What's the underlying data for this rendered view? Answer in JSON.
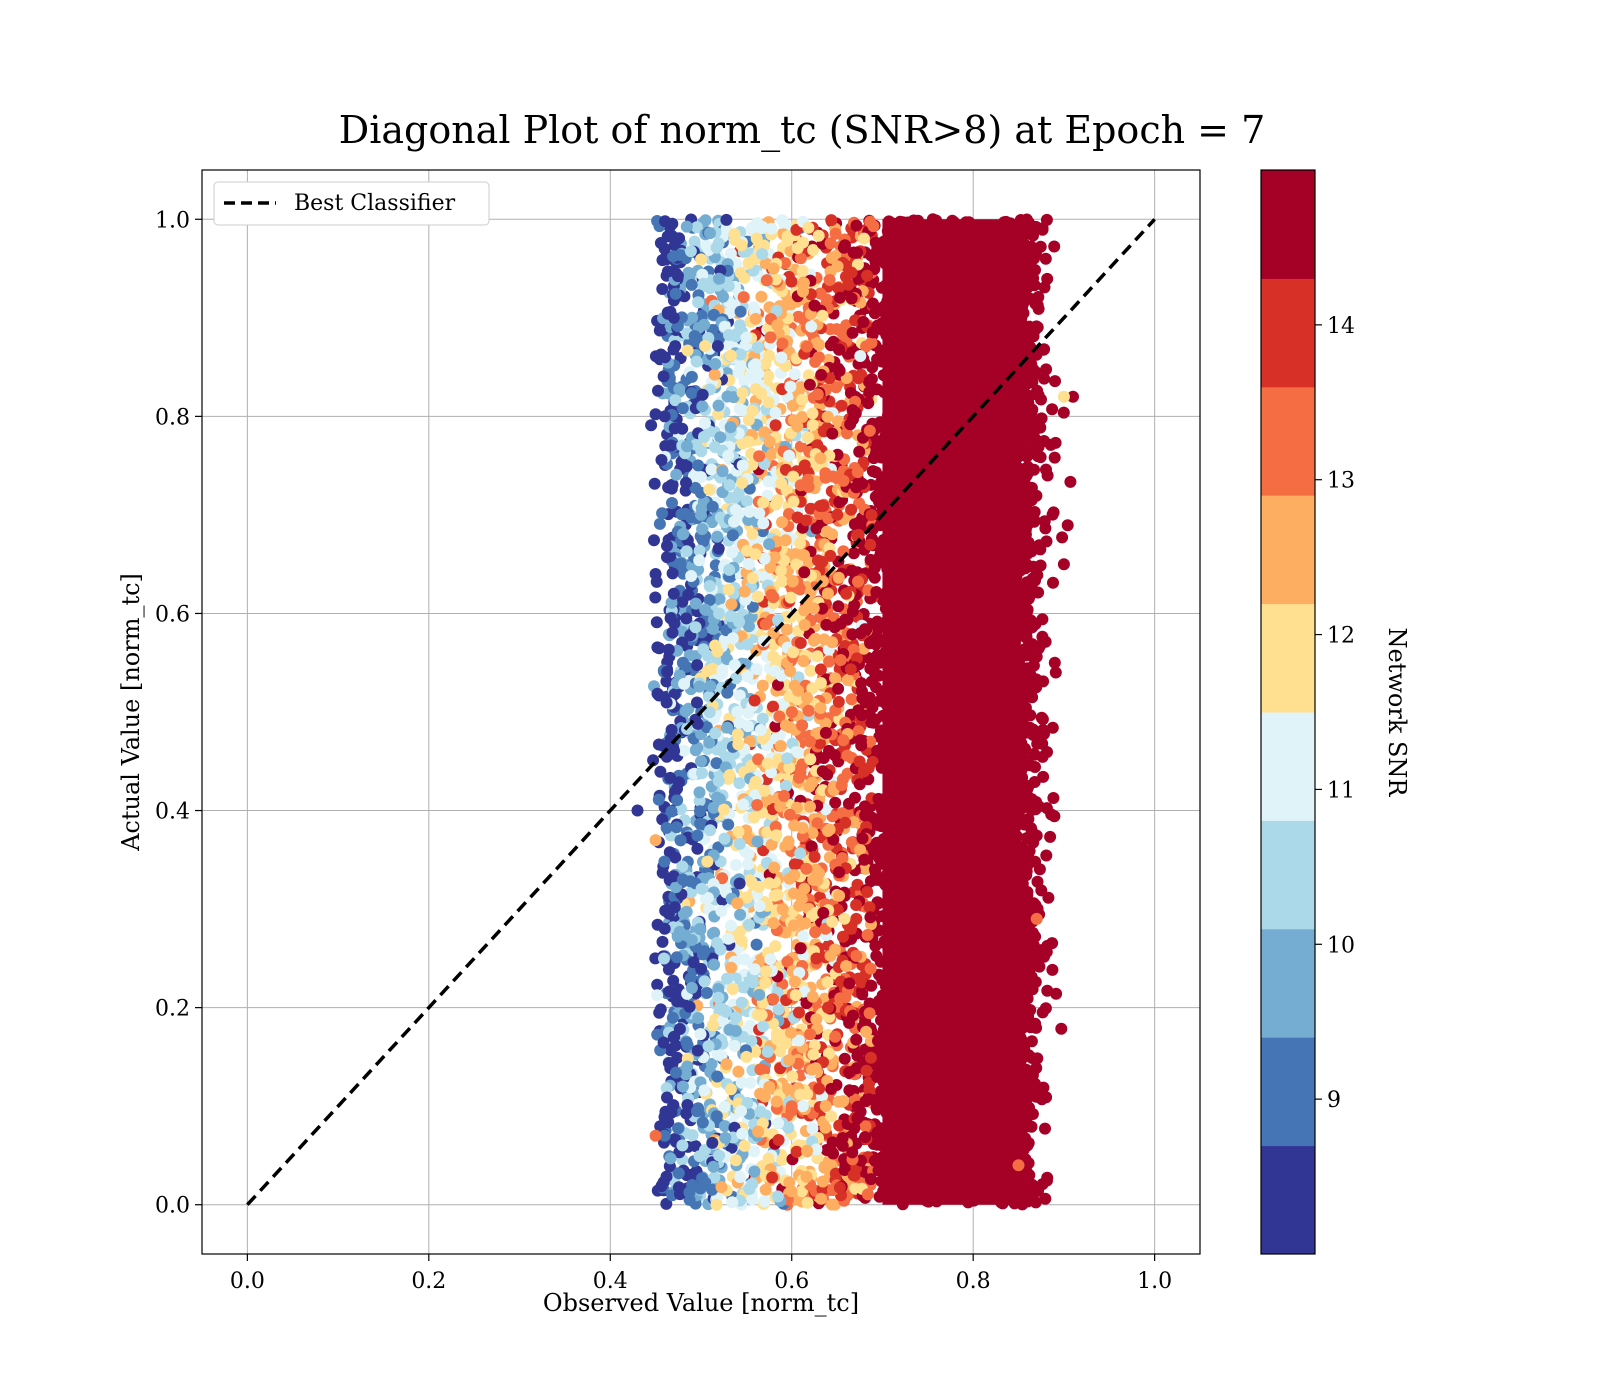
{
  "chart_data": {
    "type": "scatter",
    "title": "Diagonal Plot of norm_tc (SNR>8) at Epoch = 7",
    "xlabel": "Observed Value [norm_tc]",
    "ylabel": "Actual Value [norm_tc]",
    "xlim": [
      -0.05,
      1.05
    ],
    "ylim": [
      -0.05,
      1.05
    ],
    "xticks": [
      0.0,
      0.2,
      0.4,
      0.6,
      0.8,
      1.0
    ],
    "yticks": [
      0.0,
      0.2,
      0.4,
      0.6,
      0.8,
      1.0
    ],
    "xtick_labels": [
      "0.0",
      "0.2",
      "0.4",
      "0.6",
      "0.8",
      "1.0"
    ],
    "ytick_labels": [
      "0.0",
      "0.2",
      "0.4",
      "0.6",
      "0.8",
      "1.0"
    ],
    "grid": true,
    "legend_position": "upper-left",
    "series": [
      {
        "name": "Best Classifier",
        "kind": "line",
        "style": "dashed",
        "color": "#000000",
        "x": [
          0.0,
          1.0
        ],
        "y": [
          0.0,
          1.0
        ]
      }
    ],
    "scatter_summary": {
      "x_range": [
        0.45,
        0.9
      ],
      "y_range": [
        0.0,
        1.0
      ],
      "color_by": "Network SNR",
      "trend": "higher observed value corresponds to higher network SNR",
      "points": [
        [
          0.46,
          0.97,
          8.3
        ],
        [
          0.47,
          0.9,
          8.7
        ],
        [
          0.46,
          0.8,
          8.4
        ],
        [
          0.47,
          0.62,
          8.6
        ],
        [
          0.45,
          0.64,
          8.2
        ],
        [
          0.43,
          0.4,
          8.3
        ],
        [
          0.46,
          0.28,
          8.5
        ],
        [
          0.47,
          0.17,
          8.4
        ],
        [
          0.46,
          0.07,
          8.8
        ],
        [
          0.48,
          0.55,
          9.2
        ],
        [
          0.48,
          0.33,
          9.1
        ],
        [
          0.49,
          0.84,
          9.3
        ],
        [
          0.48,
          0.12,
          9.4
        ],
        [
          0.5,
          0.7,
          9.8
        ],
        [
          0.5,
          0.45,
          9.6
        ],
        [
          0.49,
          0.22,
          9.9
        ],
        [
          0.51,
          0.93,
          10.2
        ],
        [
          0.52,
          0.6,
          10.4
        ],
        [
          0.51,
          0.38,
          10.3
        ],
        [
          0.52,
          0.05,
          10.6
        ],
        [
          0.53,
          0.76,
          10.8
        ],
        [
          0.54,
          0.5,
          11.1
        ],
        [
          0.53,
          0.27,
          11.0
        ],
        [
          0.55,
          0.88,
          11.4
        ],
        [
          0.56,
          0.66,
          11.7
        ],
        [
          0.55,
          0.15,
          11.8
        ],
        [
          0.57,
          0.42,
          12.1
        ],
        [
          0.58,
          0.95,
          12.3
        ],
        [
          0.58,
          0.58,
          12.4
        ],
        [
          0.59,
          0.3,
          12.6
        ],
        [
          0.6,
          0.1,
          12.9
        ],
        [
          0.61,
          0.73,
          13.1
        ],
        [
          0.62,
          0.47,
          13.3
        ],
        [
          0.63,
          0.86,
          13.6
        ],
        [
          0.64,
          0.2,
          13.8
        ],
        [
          0.66,
          0.62,
          14.1
        ],
        [
          0.68,
          0.35,
          14.4
        ],
        [
          0.7,
          0.91,
          14.6
        ],
        [
          0.72,
          0.53,
          14.8
        ],
        [
          0.75,
          0.08,
          14.9
        ],
        [
          0.78,
          0.7,
          14.9
        ],
        [
          0.8,
          0.25,
          14.9
        ],
        [
          0.82,
          0.82,
          14.9
        ],
        [
          0.84,
          0.45,
          14.9
        ],
        [
          0.86,
          0.12,
          14.9
        ],
        [
          0.88,
          0.96,
          14.9
        ],
        [
          0.91,
          0.82,
          14.9
        ],
        [
          0.9,
          0.65,
          14.9
        ],
        [
          0.89,
          0.55,
          14.9
        ],
        [
          0.87,
          0.29,
          13.4
        ],
        [
          0.85,
          0.04,
          13.2
        ],
        [
          0.45,
          0.37,
          12.3
        ],
        [
          0.45,
          0.07,
          13.6
        ],
        [
          0.9,
          0.82,
          12.0
        ],
        [
          0.61,
          0.57,
          13.9
        ]
      ]
    },
    "colorbar": {
      "label": "Network SNR",
      "min": 8.0,
      "max": 15.0,
      "ticks": [
        9,
        10,
        11,
        12,
        13,
        14
      ],
      "tick_labels": [
        "9",
        "10",
        "11",
        "12",
        "13",
        "14"
      ],
      "colors": [
        "#313695",
        "#4575b4",
        "#74add1",
        "#abd9e9",
        "#e0f3f8",
        "#fee090",
        "#fdae61",
        "#f46d43",
        "#d73027",
        "#a50026"
      ]
    }
  }
}
